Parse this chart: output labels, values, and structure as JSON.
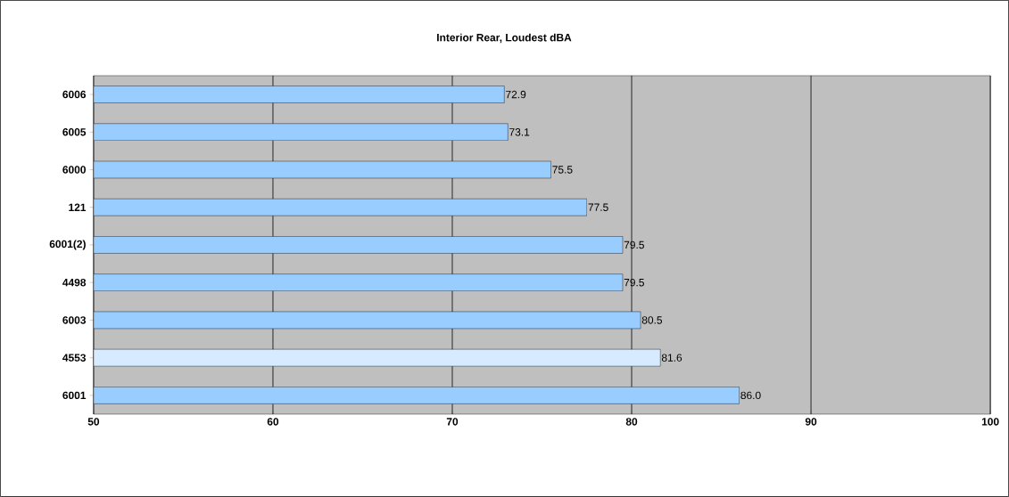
{
  "chart_data": {
    "type": "bar",
    "orientation": "horizontal",
    "title": "Interior Rear, Loudest dBA",
    "categories": [
      "6006",
      "6005",
      "6000",
      "121",
      "6001(2)",
      "4498",
      "6003",
      "4553",
      "6001"
    ],
    "values": [
      72.9,
      73.1,
      75.5,
      77.5,
      79.5,
      79.5,
      80.5,
      81.6,
      86.0
    ],
    "value_labels": [
      "72.9",
      "73.1",
      "75.5",
      "77.5",
      "79.5",
      "79.5",
      "80.5",
      "81.6",
      "86.0"
    ],
    "colors": [
      "#99ccff",
      "#99ccff",
      "#99ccff",
      "#99ccff",
      "#99ccff",
      "#99ccff",
      "#99ccff",
      "#d6ebff",
      "#99ccff"
    ],
    "xlim": [
      50,
      100
    ],
    "xticks": [
      50,
      60,
      70,
      80,
      90,
      100
    ],
    "grid": "x"
  }
}
